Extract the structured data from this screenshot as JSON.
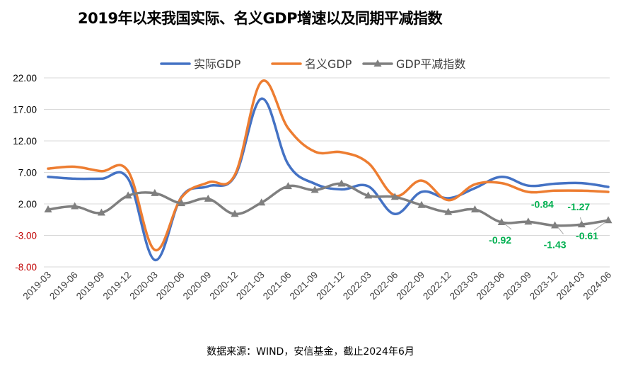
{
  "chart_data": {
    "type": "line",
    "title": "2019年以来我国实际、名义GDP增速以及同期平减指数",
    "source": "数据来源：WIND，安信基金，截止2024年6月",
    "xlabel": "",
    "ylabel": "",
    "ylim": [
      -8,
      22
    ],
    "yticks": [
      22,
      17,
      12,
      7,
      2,
      -3,
      -8
    ],
    "ytick_labels": [
      "22.00",
      "17.00",
      "12.00",
      "7.00",
      "2.00",
      "-3.00",
      "-8.00"
    ],
    "grid": true,
    "legend_position": "top",
    "categories": [
      "2019-03",
      "2019-06",
      "2019-09",
      "2019-12",
      "2020-03",
      "2020-06",
      "2020-09",
      "2020-12",
      "2021-03",
      "2021-06",
      "2021-09",
      "2021-12",
      "2022-03",
      "2022-06",
      "2022-09",
      "2022-12",
      "2023-03",
      "2023-06",
      "2023-09",
      "2023-12",
      "2024-03",
      "2024-06"
    ],
    "series": [
      {
        "name": "实际GDP",
        "color": "#4472C4",
        "marker": "none",
        "values": [
          6.3,
          6.0,
          6.0,
          6.0,
          -6.9,
          3.1,
          4.8,
          6.4,
          18.7,
          8.3,
          5.2,
          4.3,
          4.8,
          0.4,
          3.9,
          2.9,
          4.5,
          6.3,
          4.9,
          5.2,
          5.3,
          4.7
        ]
      },
      {
        "name": "名义GDP",
        "color": "#ED7D31",
        "marker": "none",
        "values": [
          7.6,
          7.9,
          7.2,
          7.2,
          -5.3,
          3.0,
          5.4,
          6.6,
          21.4,
          14.0,
          10.3,
          10.2,
          8.5,
          3.3,
          5.7,
          2.6,
          5.1,
          5.3,
          3.9,
          4.1,
          4.1,
          3.9
        ]
      },
      {
        "name": "GDP平减指数",
        "color": "#7F7F7F",
        "marker": "triangle",
        "values": [
          1.1,
          1.6,
          0.6,
          3.3,
          3.7,
          2.1,
          2.8,
          0.4,
          2.2,
          4.8,
          4.2,
          5.2,
          3.3,
          3.1,
          1.8,
          0.7,
          1.1,
          -0.92,
          -0.84,
          -1.43,
          -1.27,
          -0.61
        ]
      }
    ],
    "annotations": [
      {
        "text": "-0.92",
        "category": "2023-06",
        "color": "#00B050"
      },
      {
        "text": "-0.84",
        "category": "2023-09",
        "color": "#00B050"
      },
      {
        "text": "-1.43",
        "category": "2023-12",
        "color": "#00B050"
      },
      {
        "text": "-1.27",
        "category": "2024-03",
        "color": "#00B050"
      },
      {
        "text": "-0.61",
        "category": "2024-06",
        "color": "#00B050"
      }
    ],
    "ytick_colors": {
      "positive": "#000000",
      "negative": "#C00000"
    }
  }
}
